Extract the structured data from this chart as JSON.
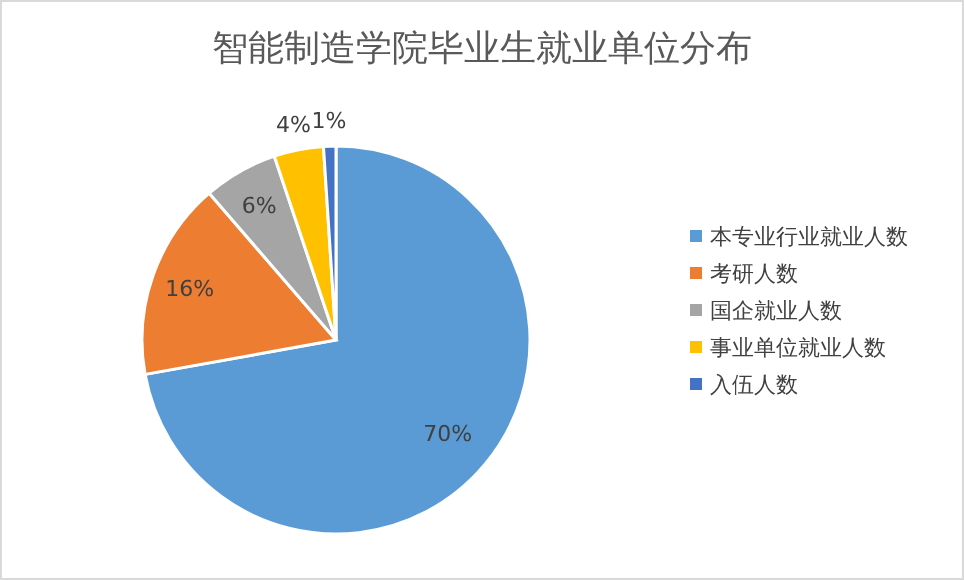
{
  "chart_data": {
    "type": "pie",
    "title": "智能制造学院毕业生就业单位分布",
    "categories": [
      "本专业行业就业人数",
      "考研人数",
      "国企就业人数",
      "事业单位就业人数",
      "入伍人数"
    ],
    "values": [
      70,
      16,
      6,
      4,
      1
    ],
    "colors": [
      "#5b9bd5",
      "#ed7d31",
      "#a5a5a5",
      "#ffc000",
      "#4472c4"
    ],
    "value_labels": [
      "70%",
      "16%",
      "6%",
      "4%",
      "1%"
    ],
    "legend": "right"
  }
}
